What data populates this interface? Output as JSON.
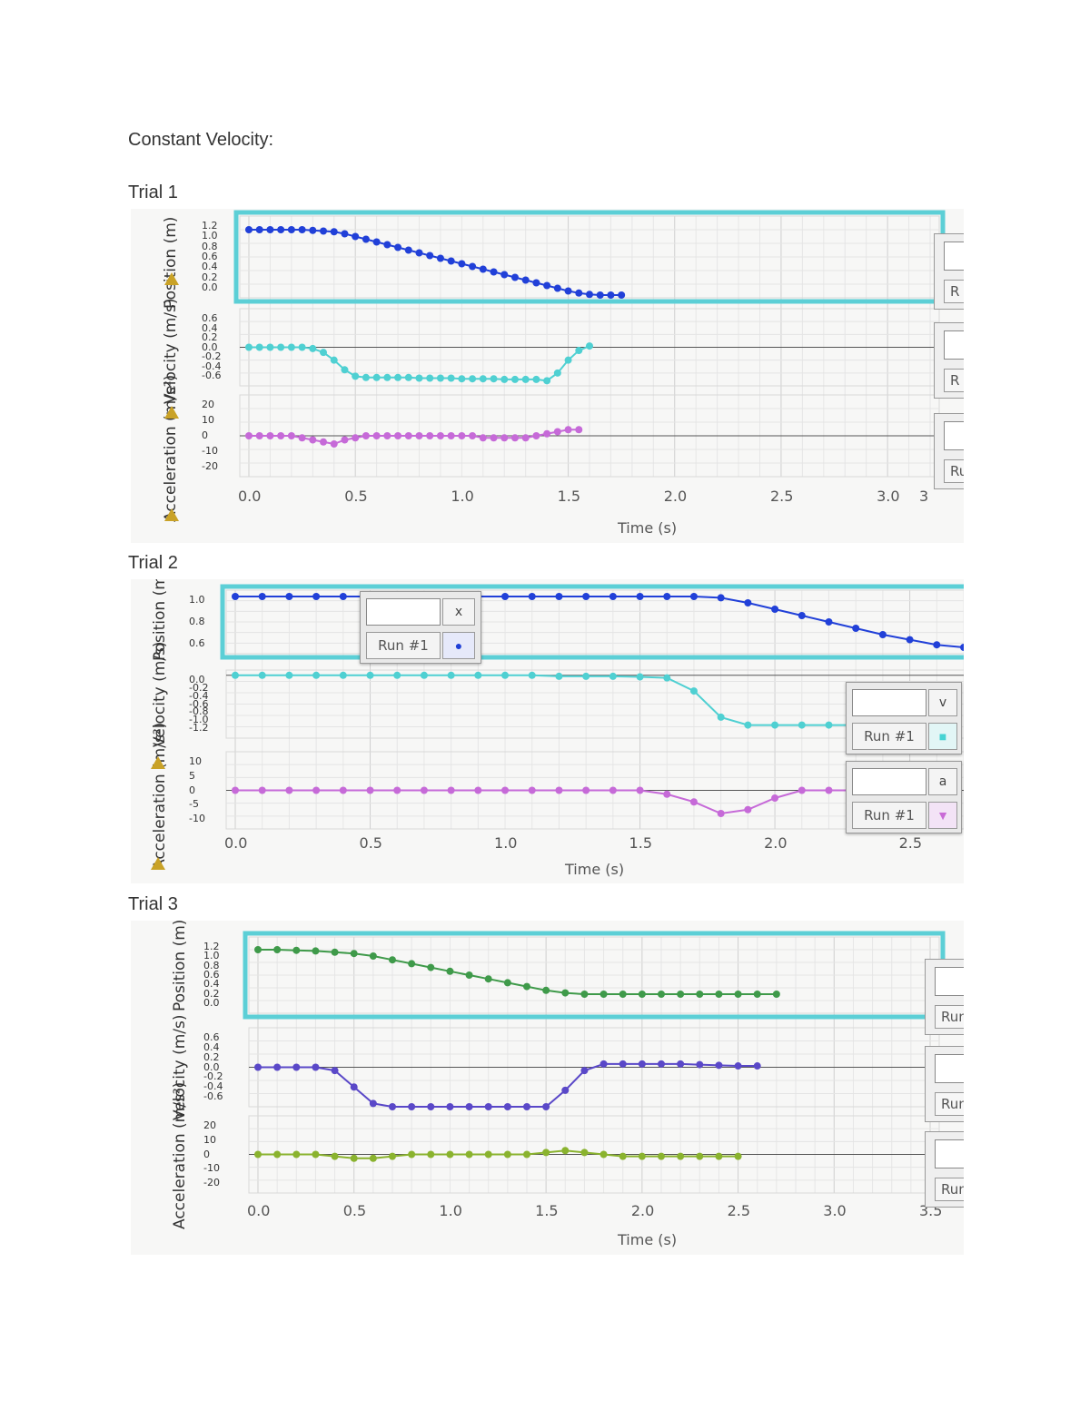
{
  "heading": "Constant Velocity:",
  "trials": [
    {
      "label": "Trial 1",
      "y_axis_titles": [
        "Acceleration (m/s²)",
        "Velocity (m/s)",
        "Position (m)"
      ],
      "x_axis_label": "Time (s)",
      "x_ticks": [
        "0.0",
        "0.5",
        "1.0",
        "1.5",
        "2.0",
        "2.5",
        "3.0",
        "3"
      ],
      "position_ticks": [
        "1.2",
        "1.0",
        "0.8",
        "0.6",
        "0.4",
        "0.2",
        "0.0"
      ],
      "velocity_ticks": [
        "0.6",
        "0.4",
        "0.2",
        "0.0",
        "-0.2",
        "-0.4",
        "-0.6"
      ],
      "accel_ticks": [
        "20",
        "10",
        "0",
        "-10",
        "-20"
      ],
      "edge_labels": [
        "R",
        "R",
        "Ru"
      ]
    },
    {
      "label": "Trial 2",
      "y_axis_titles": [
        "Acceleration (m/s²)",
        "Velocity (m/s)",
        "Position (m)"
      ],
      "x_axis_label": "Time (s)",
      "x_ticks": [
        "0.0",
        "0.5",
        "1.0",
        "1.5",
        "2.0",
        "2.5"
      ],
      "position_ticks": [
        "1.0",
        "0.8",
        "0.6"
      ],
      "velocity_ticks": [
        "0.0",
        "-0.2",
        "-0.4",
        "-0.6",
        "-0.8",
        "-1.0",
        "-1.2"
      ],
      "accel_ticks": [
        "10",
        "5",
        "0",
        "-5",
        "-10"
      ],
      "legends": [
        {
          "letter": "x",
          "run": "Run #1",
          "symbol": "●",
          "color": "#1f3fd6"
        },
        {
          "letter": "v",
          "run": "Run #1",
          "symbol": "■",
          "color": "#46d3d3"
        },
        {
          "letter": "a",
          "run": "Run #1",
          "symbol": "▼",
          "color": "#c96ad6"
        }
      ]
    },
    {
      "label": "Trial 3",
      "y_axis_titles": [
        "Acceleration (m/s²)",
        "Velocity (m/s)",
        "Position (m)"
      ],
      "x_axis_label": "Time (s)",
      "x_ticks": [
        "0.0",
        "0.5",
        "1.0",
        "1.5",
        "2.0",
        "2.5",
        "3.0",
        "3.5"
      ],
      "position_ticks": [
        "1.2",
        "1.0",
        "0.8",
        "0.6",
        "0.4",
        "0.2",
        "0.0"
      ],
      "velocity_ticks": [
        "0.6",
        "0.4",
        "0.2",
        "0.0",
        "-0.2",
        "-0.4",
        "-0.6"
      ],
      "accel_ticks": [
        "20",
        "10",
        "0",
        "-10",
        "-20"
      ],
      "edge_labels": [
        "Run",
        "Run",
        "Run"
      ]
    }
  ],
  "colors": {
    "position_t1": "#2140d8",
    "velocity_t1": "#4fd0d2",
    "accel_t1": "#c66ad8",
    "position_t3": "#3f9a4a",
    "velocity_t3": "#5a48c8",
    "accel_t3": "#8ab32e",
    "highlight": "#5ccfd6"
  },
  "chart_data": [
    {
      "type": "scatter",
      "title": "Trial 1",
      "xlabel": "Time (s)",
      "xlim": [
        0,
        3.2
      ],
      "series": [
        {
          "name": "Position",
          "x": [
            0.0,
            0.05,
            0.1,
            0.15,
            0.2,
            0.25,
            0.3,
            0.35,
            0.4,
            0.45,
            0.5,
            0.55,
            0.6,
            0.65,
            0.7,
            0.75,
            0.8,
            0.85,
            0.9,
            0.95,
            1.0,
            1.05,
            1.1,
            1.15,
            1.2,
            1.25,
            1.3,
            1.35,
            1.4,
            1.45,
            1.5,
            1.55,
            1.6,
            1.65,
            1.7,
            1.75
          ],
          "y": [
            1.0,
            1.0,
            1.0,
            1.0,
            1.0,
            1.0,
            0.99,
            0.98,
            0.97,
            0.94,
            0.9,
            0.86,
            0.82,
            0.78,
            0.74,
            0.7,
            0.66,
            0.62,
            0.58,
            0.54,
            0.5,
            0.46,
            0.42,
            0.38,
            0.34,
            0.3,
            0.26,
            0.22,
            0.18,
            0.14,
            0.1,
            0.07,
            0.05,
            0.04,
            0.04,
            0.04
          ]
        },
        {
          "name": "Velocity",
          "x": [
            0.0,
            0.05,
            0.1,
            0.15,
            0.2,
            0.25,
            0.3,
            0.35,
            0.4,
            0.45,
            0.5,
            0.55,
            0.6,
            0.65,
            0.7,
            0.75,
            0.8,
            0.85,
            0.9,
            0.95,
            1.0,
            1.05,
            1.1,
            1.15,
            1.2,
            1.25,
            1.3,
            1.35,
            1.4,
            1.45,
            1.5,
            1.55,
            1.6
          ],
          "y": [
            0.0,
            0.0,
            0.0,
            0.0,
            0.0,
            0.0,
            -0.02,
            -0.08,
            -0.2,
            -0.35,
            -0.45,
            -0.47,
            -0.47,
            -0.47,
            -0.47,
            -0.47,
            -0.48,
            -0.48,
            -0.48,
            -0.48,
            -0.49,
            -0.49,
            -0.49,
            -0.49,
            -0.5,
            -0.5,
            -0.5,
            -0.5,
            -0.52,
            -0.4,
            -0.2,
            -0.05,
            0.02
          ]
        },
        {
          "name": "Acceleration",
          "x": [
            0.0,
            0.05,
            0.1,
            0.15,
            0.2,
            0.25,
            0.3,
            0.35,
            0.4,
            0.45,
            0.5,
            0.55,
            0.6,
            0.65,
            0.7,
            0.75,
            0.8,
            0.85,
            0.9,
            0.95,
            1.0,
            1.05,
            1.1,
            1.15,
            1.2,
            1.25,
            1.3,
            1.35,
            1.4,
            1.45,
            1.5,
            1.55
          ],
          "y": [
            0,
            0,
            0,
            0,
            0,
            -1,
            -2,
            -3,
            -4,
            -2,
            -1,
            0,
            0,
            0,
            0,
            0,
            0,
            0,
            0,
            0,
            0,
            0,
            -1,
            -1,
            -1,
            -1,
            -1,
            0,
            1,
            2,
            3,
            3
          ]
        }
      ]
    },
    {
      "type": "scatter",
      "title": "Trial 2",
      "xlabel": "Time (s)",
      "xlim": [
        0,
        2.7
      ],
      "series": [
        {
          "name": "Position",
          "x": [
            0.0,
            0.1,
            0.2,
            0.3,
            0.4,
            0.5,
            0.6,
            0.7,
            0.8,
            0.9,
            1.0,
            1.1,
            1.2,
            1.3,
            1.4,
            1.5,
            1.6,
            1.7,
            1.8,
            1.9,
            2.0,
            2.1,
            2.2,
            2.3,
            2.4,
            2.5,
            2.6,
            2.7
          ],
          "y": [
            1.0,
            1.0,
            1.0,
            1.0,
            1.0,
            1.0,
            1.0,
            1.0,
            1.0,
            1.0,
            1.0,
            1.0,
            1.0,
            1.0,
            1.0,
            1.0,
            1.0,
            1.0,
            0.99,
            0.95,
            0.9,
            0.85,
            0.8,
            0.75,
            0.7,
            0.66,
            0.62,
            0.6
          ]
        },
        {
          "name": "Velocity",
          "x": [
            0.0,
            0.1,
            0.2,
            0.3,
            0.4,
            0.5,
            0.6,
            0.7,
            0.8,
            0.9,
            1.0,
            1.1,
            1.2,
            1.3,
            1.4,
            1.5,
            1.6,
            1.7,
            1.8,
            1.9,
            2.0,
            2.1,
            2.2,
            2.3,
            2.4,
            2.5
          ],
          "y": [
            0.0,
            0.0,
            0.0,
            0.0,
            0.0,
            0.0,
            0.0,
            0.0,
            0.0,
            0.0,
            0.0,
            0.0,
            -0.02,
            -0.02,
            -0.02,
            -0.03,
            -0.05,
            -0.3,
            -0.8,
            -0.95,
            -0.95,
            -0.95,
            -0.95,
            -0.95,
            -0.95,
            -0.95
          ]
        },
        {
          "name": "Acceleration",
          "x": [
            0.0,
            0.1,
            0.2,
            0.3,
            0.4,
            0.5,
            0.6,
            0.7,
            0.8,
            0.9,
            1.0,
            1.1,
            1.2,
            1.3,
            1.4,
            1.5,
            1.6,
            1.7,
            1.8,
            1.9,
            2.0,
            2.1,
            2.2,
            2.3,
            2.4,
            2.5
          ],
          "y": [
            0,
            0,
            0,
            0,
            0,
            0,
            0,
            0,
            0,
            0,
            0,
            0,
            0,
            0,
            0,
            0,
            -1,
            -3,
            -6,
            -5,
            -2,
            0,
            0,
            0,
            0,
            0
          ]
        }
      ]
    },
    {
      "type": "scatter",
      "title": "Trial 3",
      "xlabel": "Time (s)",
      "xlim": [
        0,
        3.5
      ],
      "series": [
        {
          "name": "Position",
          "x": [
            0.0,
            0.1,
            0.2,
            0.3,
            0.4,
            0.5,
            0.6,
            0.7,
            0.8,
            0.9,
            1.0,
            1.1,
            1.2,
            1.3,
            1.4,
            1.5,
            1.6,
            1.7,
            1.8,
            1.9,
            2.0,
            2.1,
            2.2,
            2.3,
            2.4,
            2.5,
            2.6,
            2.7
          ],
          "y": [
            1.0,
            1.0,
            0.99,
            0.98,
            0.96,
            0.94,
            0.9,
            0.84,
            0.78,
            0.72,
            0.66,
            0.6,
            0.54,
            0.48,
            0.42,
            0.36,
            0.32,
            0.3,
            0.3,
            0.3,
            0.3,
            0.3,
            0.3,
            0.3,
            0.3,
            0.3,
            0.3,
            0.3
          ]
        },
        {
          "name": "Velocity",
          "x": [
            0.0,
            0.1,
            0.2,
            0.3,
            0.4,
            0.5,
            0.6,
            0.7,
            0.8,
            0.9,
            1.0,
            1.1,
            1.2,
            1.3,
            1.4,
            1.5,
            1.6,
            1.7,
            1.8,
            1.9,
            2.0,
            2.1,
            2.2,
            2.3,
            2.4,
            2.5,
            2.6
          ],
          "y": [
            0.0,
            0.0,
            0.0,
            0.0,
            -0.05,
            -0.3,
            -0.55,
            -0.6,
            -0.6,
            -0.6,
            -0.6,
            -0.6,
            -0.6,
            -0.6,
            -0.6,
            -0.6,
            -0.35,
            -0.05,
            0.05,
            0.05,
            0.05,
            0.05,
            0.05,
            0.04,
            0.03,
            0.02,
            0.02
          ]
        },
        {
          "name": "Acceleration",
          "x": [
            0.0,
            0.1,
            0.2,
            0.3,
            0.4,
            0.5,
            0.6,
            0.7,
            0.8,
            0.9,
            1.0,
            1.1,
            1.2,
            1.3,
            1.4,
            1.5,
            1.6,
            1.7,
            1.8,
            1.9,
            2.0,
            2.1,
            2.2,
            2.3,
            2.4,
            2.5
          ],
          "y": [
            0,
            0,
            0,
            0,
            -1,
            -2,
            -2,
            -1,
            0,
            0,
            0,
            0,
            0,
            0,
            0,
            1,
            2,
            1,
            0,
            -1,
            -1,
            -1,
            -1,
            -1,
            -1,
            -1
          ]
        }
      ]
    }
  ]
}
